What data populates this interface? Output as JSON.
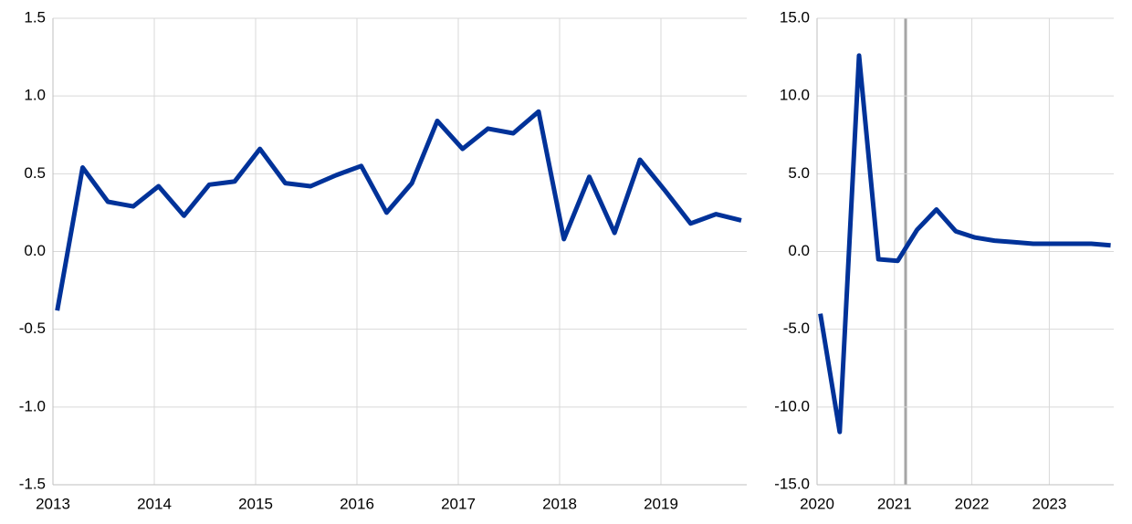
{
  "chart_data": [
    {
      "type": "line",
      "categories": [
        "2013",
        null,
        null,
        null,
        "2014",
        null,
        null,
        null,
        "2015",
        null,
        null,
        null,
        "2016",
        null,
        null,
        null,
        "2017",
        null,
        null,
        null,
        "2018",
        null,
        null,
        null,
        "2019",
        null,
        null,
        null
      ],
      "series": [
        {
          "color": "#003299",
          "values": [
            -0.38,
            0.54,
            0.32,
            0.29,
            0.42,
            0.23,
            0.43,
            0.45,
            0.66,
            0.44,
            0.42,
            0.49,
            0.55,
            0.25,
            0.44,
            0.84,
            0.66,
            0.79,
            0.76,
            0.9,
            0.08,
            0.48,
            0.12,
            0.59,
            0.39,
            0.18,
            0.24,
            0.2
          ]
        }
      ],
      "ylim": [
        -1.5,
        1.5
      ],
      "yticks": [
        1.5,
        {
          "value": 1.0,
          "label": "1.0"
        },
        0.5,
        {
          "value": 0.0,
          "label": "0.0"
        },
        -0.5,
        {
          "value": -1.0,
          "label": "-1.0"
        },
        -1.5
      ],
      "grid": true
    },
    {
      "type": "line",
      "categories": [
        "2020",
        null,
        null,
        null,
        "2021",
        null,
        null,
        null,
        "2022",
        null,
        null,
        null,
        "2023",
        null,
        null,
        null
      ],
      "series": [
        {
          "color": "#003299",
          "values": [
            -4.0,
            -11.6,
            12.6,
            -0.5,
            -0.6,
            1.4,
            2.7,
            1.3,
            0.9,
            0.7,
            0.6,
            0.5,
            0.5,
            0.5,
            0.5,
            0.4
          ]
        }
      ],
      "ylim": [
        -15,
        15
      ],
      "yticks": [
        {
          "value": 15,
          "label": "15.0"
        },
        {
          "value": 10,
          "label": "10.0"
        },
        {
          "value": 5,
          "label": "5.0"
        },
        {
          "value": 0,
          "label": "0.0"
        },
        {
          "value": -5,
          "label": "-5.0"
        },
        {
          "value": -10,
          "label": "-10.0"
        },
        {
          "value": -15,
          "label": "-15.0"
        }
      ],
      "grid": true
    }
  ]
}
